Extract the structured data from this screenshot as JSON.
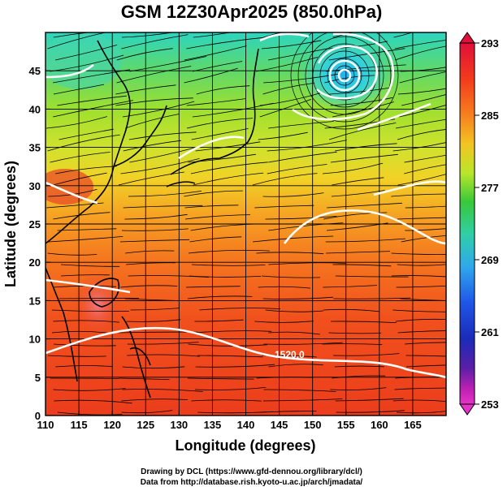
{
  "title": "GSM 12Z30Apr2025 (850.0hPa)",
  "axes": {
    "x_label": "Longitude (degrees)",
    "y_label": "Latitude  (degrees)",
    "x_ticks": [
      "110",
      "115",
      "120",
      "125",
      "130",
      "135",
      "140",
      "145",
      "150",
      "155",
      "160",
      "165"
    ],
    "y_ticks": [
      "0",
      "5",
      "10",
      "15",
      "20",
      "25",
      "30",
      "35",
      "40",
      "45"
    ]
  },
  "colorbar": {
    "ticks": [
      "293",
      "285",
      "277",
      "269",
      "261",
      "253"
    ],
    "colors": [
      "#e0103a",
      "#f23b1c",
      "#f7801e",
      "#f3c423",
      "#b9e62a",
      "#38c83a",
      "#30cfa8",
      "#2fa8ec",
      "#1f55e6",
      "#1b2bb8",
      "#5a1fa6",
      "#c021b4",
      "#e533c9"
    ]
  },
  "contour_label": "1520.0",
  "credits": {
    "line1": "Drawing by DCL (https://www.gfd-dennou.org/library/dcl/)",
    "line2": "Data from http://database.rish.kyoto-u.ac.jp/arch/jmadata/"
  }
}
